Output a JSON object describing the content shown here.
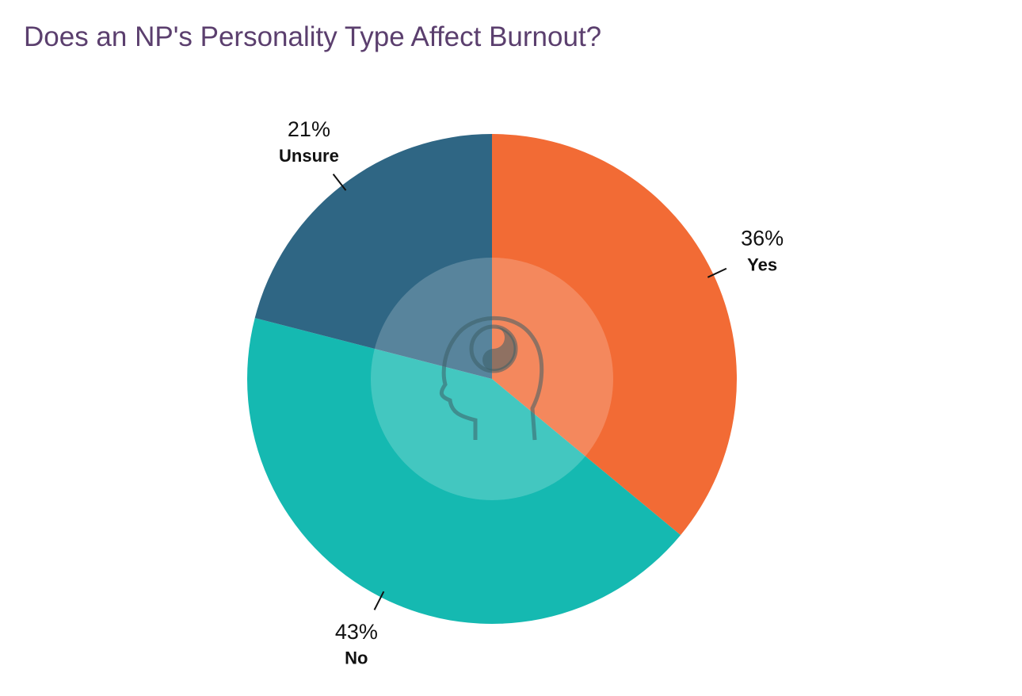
{
  "chart_data": {
    "type": "pie",
    "title": "Does an NP's Personality Type Affect Burnout?",
    "categories": [
      "Yes",
      "No",
      "Unsure"
    ],
    "values": [
      36,
      43,
      21
    ],
    "value_labels": [
      "36%",
      "43%",
      "21%"
    ],
    "colors": [
      "#f26b35",
      "#15b9b1",
      "#2f6684"
    ]
  }
}
